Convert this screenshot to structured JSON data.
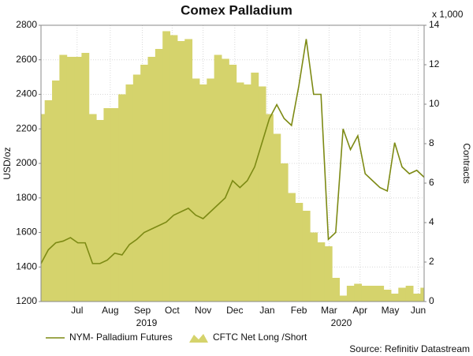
{
  "chart_data": {
    "type": "line",
    "title": "Comex Palladium",
    "y_label": "USD/oz",
    "y2_label": "Contracts",
    "y2_unit": "x 1,000",
    "source": "Source: Refinitiv Datastream",
    "annotations": [
      "2019",
      "2020"
    ],
    "x": [
      0,
      1,
      2,
      3,
      4,
      5,
      6,
      7,
      8,
      9,
      10,
      11,
      12,
      13,
      14,
      15,
      16,
      17,
      18,
      19,
      20,
      21,
      22,
      23,
      24,
      25,
      26,
      27,
      28,
      29,
      30,
      31,
      32,
      33,
      34,
      35,
      36,
      37,
      38,
      39,
      40,
      41,
      42,
      43,
      44,
      45,
      46,
      47,
      48,
      49,
      50,
      51,
      52
    ],
    "xlim": [
      0,
      52
    ],
    "xticks": [
      {
        "value": 4.9,
        "label": "Jul"
      },
      {
        "value": 9.4,
        "label": "Aug"
      },
      {
        "value": 13.75,
        "label": "Sep"
      },
      {
        "value": 17.8,
        "label": "Oct"
      },
      {
        "value": 22,
        "label": "Nov"
      },
      {
        "value": 26.3,
        "label": "Dec"
      },
      {
        "value": 30.7,
        "label": "Jan"
      },
      {
        "value": 35,
        "label": "Feb"
      },
      {
        "value": 39.1,
        "label": "Mar"
      },
      {
        "value": 43.3,
        "label": "Apr"
      },
      {
        "value": 47.4,
        "label": "May"
      },
      {
        "value": 51.2,
        "label": "Jun"
      }
    ],
    "ylim": [
      1200,
      2800
    ],
    "yticks": [
      1200,
      1400,
      1600,
      1800,
      2000,
      2200,
      2400,
      2600,
      2800
    ],
    "y2lim": [
      0,
      14
    ],
    "y2ticks": [
      0,
      2,
      4,
      6,
      8,
      10,
      12,
      14
    ],
    "grid": true,
    "series": [
      {
        "name": "CFTC Net Long /Short",
        "type": "area",
        "axis": "y2",
        "color": "#d5d36c",
        "values": [
          9.5,
          10.2,
          11.2,
          12.5,
          12.4,
          12.4,
          12.6,
          9.5,
          9.2,
          9.8,
          9.8,
          10.5,
          11.0,
          11.5,
          12.0,
          12.4,
          12.8,
          13.7,
          13.5,
          13.2,
          13.3,
          11.3,
          11.0,
          11.3,
          12.5,
          12.3,
          12.0,
          11.1,
          11.0,
          11.6,
          10.9,
          9.5,
          8.5,
          7.0,
          5.5,
          5.0,
          4.6,
          3.5,
          3.0,
          2.8,
          1.2,
          0.3,
          0.8,
          0.9,
          0.8,
          0.8,
          0.8,
          0.6,
          0.4,
          0.7,
          0.8,
          0.4,
          0.7
        ]
      },
      {
        "name": "NYM- Palladium Futures",
        "type": "line",
        "axis": "y",
        "color": "#7d8a14",
        "values": [
          1420,
          1500,
          1540,
          1550,
          1570,
          1540,
          1540,
          1420,
          1420,
          1440,
          1480,
          1470,
          1530,
          1560,
          1600,
          1620,
          1640,
          1660,
          1700,
          1720,
          1740,
          1700,
          1680,
          1720,
          1760,
          1800,
          1900,
          1860,
          1900,
          1980,
          2120,
          2260,
          2340,
          2260,
          2220,
          2450,
          2720,
          2400,
          2400,
          1560,
          1600,
          2200,
          2080,
          2160,
          1940,
          1900,
          1860,
          1840,
          2120,
          1980,
          1940,
          1960,
          1920
        ]
      }
    ]
  }
}
